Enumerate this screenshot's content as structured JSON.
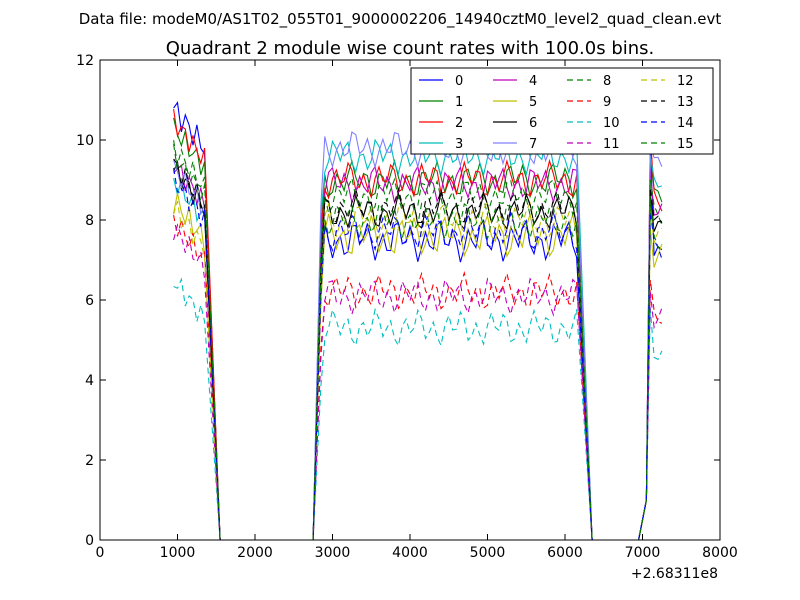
{
  "suptitle": "Data file: modeM0/AS1T02_055T01_9000002206_14940cztM0_level2_quad_clean.evt",
  "chart_data": {
    "type": "line",
    "title": "Quadrant 2 module wise count rates with 100.0s bins.",
    "xlabel": "",
    "ylabel": "",
    "x_offset_label": "+2.68311e8",
    "xlim": [
      0,
      8000
    ],
    "ylim": [
      0,
      12
    ],
    "xticks": [
      "0",
      "1000",
      "2000",
      "3000",
      "4000",
      "5000",
      "6000",
      "7000",
      "8000"
    ],
    "yticks": [
      "0",
      "2",
      "4",
      "6",
      "8",
      "10",
      "12"
    ],
    "grid": false,
    "legend_position": "top-right",
    "legend_columns": 4,
    "series": [
      {
        "name": "0",
        "color": "#0000ff",
        "dash": "solid",
        "base": 7.5,
        "first": 10.8,
        "peak": 10.0,
        "amp": 0.35
      },
      {
        "name": "1",
        "color": "#008000",
        "dash": "solid",
        "base": 9.0,
        "first": 10.3,
        "peak": 9.5,
        "amp": 0.3
      },
      {
        "name": "2",
        "color": "#ff0000",
        "dash": "solid",
        "base": 9.0,
        "first": 10.5,
        "peak": 10.1,
        "amp": 0.3
      },
      {
        "name": "3",
        "color": "#00bfbf",
        "dash": "solid",
        "base": 9.6,
        "first": 9.0,
        "peak": 9.6,
        "amp": 0.3
      },
      {
        "name": "4",
        "color": "#bf00bf",
        "dash": "solid",
        "base": 8.9,
        "first": 9.4,
        "peak": 9.3,
        "amp": 0.3
      },
      {
        "name": "5",
        "color": "#bfbf00",
        "dash": "solid",
        "base": 7.6,
        "first": 8.5,
        "peak": 7.8,
        "amp": 0.35
      },
      {
        "name": "6",
        "color": "#000000",
        "dash": "solid",
        "base": 8.2,
        "first": 9.3,
        "peak": 8.6,
        "amp": 0.3
      },
      {
        "name": "7",
        "color": "#8080ff",
        "dash": "solid",
        "base": 9.8,
        "first": 9.3,
        "peak": 9.9,
        "amp": 0.3
      },
      {
        "name": "8",
        "color": "#008000",
        "dash": "dashed",
        "base": 8.6,
        "first": 9.6,
        "peak": 9.0,
        "amp": 0.3
      },
      {
        "name": "9",
        "color": "#ff0000",
        "dash": "dashed",
        "base": 6.2,
        "first": 8.0,
        "peak": 6.5,
        "amp": 0.3
      },
      {
        "name": "10",
        "color": "#00bfbf",
        "dash": "dashed",
        "base": 5.3,
        "first": 6.5,
        "peak": 5.8,
        "amp": 0.3
      },
      {
        "name": "11",
        "color": "#bf00bf",
        "dash": "dashed",
        "base": 6.1,
        "first": 7.8,
        "peak": 6.2,
        "amp": 0.3
      },
      {
        "name": "12",
        "color": "#bfbf00",
        "dash": "dashed",
        "base": 8.0,
        "first": 8.3,
        "peak": 8.3,
        "amp": 0.3
      },
      {
        "name": "13",
        "color": "#000000",
        "dash": "dashed",
        "base": 8.3,
        "first": 9.4,
        "peak": 8.8,
        "amp": 0.3
      },
      {
        "name": "14",
        "color": "#0000ff",
        "dash": "dashed",
        "base": 7.7,
        "first": 9.0,
        "peak": 8.2,
        "amp": 0.3
      },
      {
        "name": "15",
        "color": "#008000",
        "dash": "dashed",
        "base": 8.0,
        "first": 9.8,
        "peak": 8.5,
        "amp": 0.3
      }
    ],
    "segments": [
      {
        "x_start": 950,
        "x_end": 1350,
        "step": 50
      },
      {
        "x_start": 2850,
        "x_end": 6150,
        "step": 50
      },
      {
        "x_start": 7050,
        "x_end": 7250,
        "step": 50
      }
    ],
    "zero_points": [
      1550,
      2750,
      6350,
      6950
    ]
  }
}
